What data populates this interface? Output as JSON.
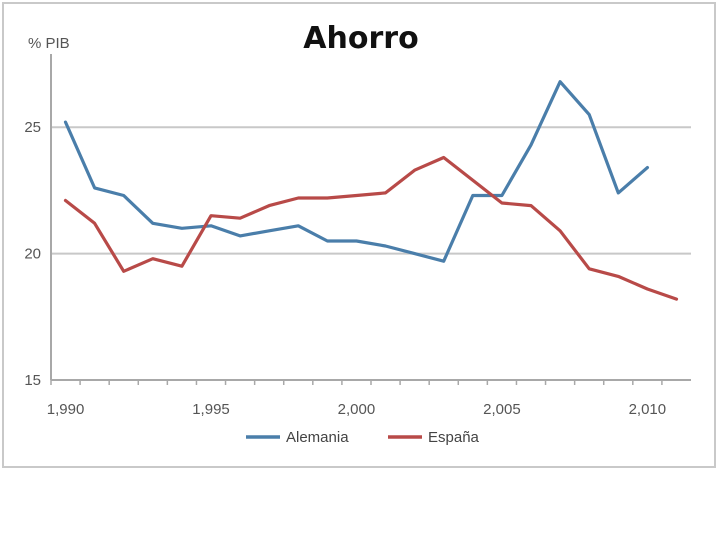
{
  "chart_data": {
    "type": "line",
    "title": "Ahorro",
    "ylabel": "% PIB",
    "xlabel": "",
    "ylim": [
      15,
      27.5
    ],
    "xlim": [
      1989.5,
      2011.5
    ],
    "yticks": [
      15,
      20,
      25
    ],
    "ytick_labels": [
      "15",
      "20",
      "25"
    ],
    "xticks": [
      1990,
      1995,
      2000,
      2005,
      2010
    ],
    "xtick_labels": [
      "1,990",
      "1,995",
      "2,000",
      "2,005",
      "2,010"
    ],
    "grid": true,
    "legend": "bottom",
    "x": [
      1990,
      1991,
      1992,
      1993,
      1994,
      1995,
      1996,
      1997,
      1998,
      1999,
      2000,
      2001,
      2002,
      2003,
      2004,
      2005,
      2006,
      2007,
      2008,
      2009,
      2010,
      2011
    ],
    "series": [
      {
        "name": "Alemania",
        "color": "#4a7eaa",
        "values": [
          25.2,
          22.6,
          22.3,
          21.2,
          21.0,
          21.1,
          20.7,
          20.9,
          21.1,
          20.5,
          20.5,
          20.3,
          20.0,
          19.7,
          22.3,
          22.3,
          24.3,
          26.8,
          25.5,
          22.4,
          23.4,
          null
        ]
      },
      {
        "name": "España",
        "color": "#b84a48",
        "values": [
          22.1,
          21.2,
          19.3,
          19.8,
          19.5,
          21.5,
          21.4,
          21.9,
          22.2,
          22.2,
          22.3,
          22.4,
          23.3,
          23.8,
          22.9,
          22.0,
          21.9,
          20.9,
          19.4,
          19.1,
          18.6,
          18.2
        ]
      }
    ]
  }
}
